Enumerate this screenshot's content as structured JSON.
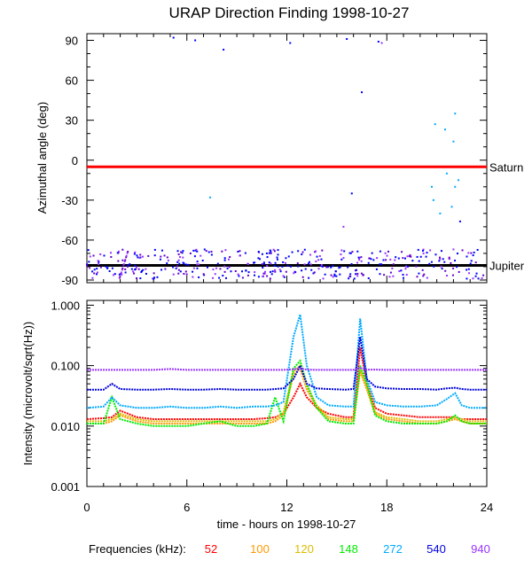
{
  "chart_data": [
    {
      "type": "scatter",
      "title": "URAP Direction Finding  1998-10-27",
      "xlabel": "",
      "ylabel": "Azimuthal angle (deg)",
      "xlim": [
        0,
        24
      ],
      "ylim": [
        -92,
        95
      ],
      "xticks": [
        0,
        6,
        12,
        18,
        24
      ],
      "yticks": [
        "90",
        "60",
        "30",
        "0",
        "-30",
        "-60",
        "-90"
      ],
      "ytick_values": [
        90,
        60,
        30,
        0,
        -30,
        -60,
        -90
      ],
      "grid": false,
      "reference_lines": [
        {
          "label": "Saturn",
          "y": -5,
          "color": "#ff0000"
        },
        {
          "label": "Jupiter",
          "y": -79,
          "color": "#000000"
        }
      ],
      "series": [
        {
          "frequency": "540",
          "color": "#0000ff",
          "points": [
            [
              5.2,
              92
            ],
            [
              6.5,
              90
            ],
            [
              8.2,
              83
            ],
            [
              12.2,
              88
            ],
            [
              15.6,
              91
            ],
            [
              17.5,
              89
            ],
            [
              16.5,
              51
            ],
            [
              15.9,
              -25
            ],
            [
              22.4,
              -46
            ],
            [
              17.8,
              -75
            ]
          ]
        },
        {
          "frequency": "940",
          "color": "#9933ff",
          "points": [
            [
              17.7,
              88
            ],
            [
              15.4,
              -50
            ],
            [
              20.2,
              -70
            ],
            [
              22.0,
              -67
            ]
          ]
        },
        {
          "frequency": "272",
          "color": "#00aaff",
          "points": [
            [
              20.9,
              27
            ],
            [
              21.5,
              23
            ],
            [
              22.1,
              35
            ],
            [
              22.0,
              14
            ],
            [
              7.4,
              -28
            ],
            [
              20.8,
              -30
            ],
            [
              21.2,
              -40
            ],
            [
              21.6,
              -10
            ],
            [
              22.1,
              -20
            ],
            [
              22.3,
              -15
            ],
            [
              21.9,
              -35
            ],
            [
              20.7,
              -20
            ]
          ]
        }
      ]
    },
    {
      "type": "line",
      "xlabel": "time - hours on 1998-10-27",
      "ylabel": "Intensity (microvolt/sqrt(Hz))",
      "xlim": [
        0,
        24
      ],
      "ylim": [
        0.001,
        1.2
      ],
      "yscale": "log",
      "xticks": [
        "0",
        "6",
        "12",
        "18",
        "24"
      ],
      "xtick_values": [
        0,
        6,
        12,
        18,
        24
      ],
      "yticks": [
        "1.000",
        "0.100",
        "0.010",
        "0.001"
      ],
      "ytick_values": [
        1.0,
        0.1,
        0.01,
        0.001
      ],
      "grid": false,
      "x": [
        0,
        1,
        1.5,
        2,
        3,
        4,
        5,
        6,
        7,
        8,
        9,
        10,
        10.8,
        11.3,
        11.8,
        12.4,
        12.8,
        13.2,
        13.8,
        14.5,
        15.5,
        16.0,
        16.4,
        16.8,
        17.3,
        18.0,
        19.0,
        20.0,
        21.0,
        21.6,
        22.1,
        22.5,
        23.0,
        24.0
      ],
      "series": [
        {
          "name": "52",
          "color": "#ff0000",
          "values": [
            0.013,
            0.0135,
            0.014,
            0.018,
            0.014,
            0.013,
            0.013,
            0.013,
            0.013,
            0.013,
            0.013,
            0.013,
            0.0135,
            0.014,
            0.016,
            0.03,
            0.05,
            0.03,
            0.02,
            0.016,
            0.014,
            0.014,
            0.2,
            0.05,
            0.02,
            0.016,
            0.015,
            0.014,
            0.014,
            0.014,
            0.014,
            0.013,
            0.013,
            0.013
          ]
        },
        {
          "name": "100",
          "color": "#ff9900",
          "values": [
            0.011,
            0.011,
            0.012,
            0.015,
            0.012,
            0.011,
            0.011,
            0.011,
            0.011,
            0.011,
            0.011,
            0.011,
            0.011,
            0.012,
            0.015,
            0.07,
            0.09,
            0.04,
            0.02,
            0.013,
            0.012,
            0.012,
            0.08,
            0.04,
            0.016,
            0.013,
            0.012,
            0.011,
            0.011,
            0.012,
            0.013,
            0.012,
            0.011,
            0.011
          ]
        },
        {
          "name": "120",
          "color": "#ddbb00",
          "values": [
            0.012,
            0.012,
            0.013,
            0.016,
            0.013,
            0.012,
            0.012,
            0.012,
            0.012,
            0.012,
            0.012,
            0.012,
            0.012,
            0.013,
            0.017,
            0.08,
            0.1,
            0.045,
            0.022,
            0.014,
            0.013,
            0.013,
            0.09,
            0.045,
            0.017,
            0.014,
            0.013,
            0.012,
            0.012,
            0.013,
            0.014,
            0.013,
            0.012,
            0.012
          ]
        },
        {
          "name": "148",
          "color": "#00ee00",
          "values": [
            0.011,
            0.011,
            0.03,
            0.013,
            0.011,
            0.01,
            0.01,
            0.01,
            0.011,
            0.012,
            0.01,
            0.01,
            0.011,
            0.03,
            0.012,
            0.09,
            0.12,
            0.05,
            0.02,
            0.012,
            0.011,
            0.011,
            0.1,
            0.05,
            0.015,
            0.012,
            0.011,
            0.011,
            0.011,
            0.012,
            0.015,
            0.012,
            0.011,
            0.011
          ]
        },
        {
          "name": "272",
          "color": "#00aaff",
          "values": [
            0.02,
            0.021,
            0.03,
            0.022,
            0.02,
            0.02,
            0.021,
            0.02,
            0.02,
            0.021,
            0.02,
            0.021,
            0.021,
            0.022,
            0.025,
            0.3,
            0.7,
            0.1,
            0.03,
            0.022,
            0.021,
            0.021,
            0.6,
            0.06,
            0.025,
            0.022,
            0.021,
            0.021,
            0.022,
            0.028,
            0.035,
            0.022,
            0.02,
            0.02
          ]
        },
        {
          "name": "540",
          "color": "#0000dd",
          "values": [
            0.04,
            0.04,
            0.05,
            0.041,
            0.04,
            0.04,
            0.041,
            0.04,
            0.04,
            0.041,
            0.04,
            0.04,
            0.04,
            0.041,
            0.042,
            0.06,
            0.1,
            0.05,
            0.042,
            0.041,
            0.04,
            0.041,
            0.3,
            0.06,
            0.045,
            0.042,
            0.041,
            0.041,
            0.04,
            0.042,
            0.043,
            0.041,
            0.04,
            0.04
          ]
        },
        {
          "name": "940",
          "color": "#9933ff",
          "values": [
            0.085,
            0.085,
            0.085,
            0.085,
            0.085,
            0.085,
            0.088,
            0.085,
            0.085,
            0.085,
            0.085,
            0.085,
            0.085,
            0.085,
            0.085,
            0.087,
            0.09,
            0.086,
            0.085,
            0.085,
            0.085,
            0.085,
            0.092,
            0.086,
            0.086,
            0.085,
            0.085,
            0.085,
            0.085,
            0.085,
            0.085,
            0.085,
            0.085,
            0.085
          ]
        }
      ]
    }
  ],
  "legend": {
    "label": "Frequencies (kHz):",
    "items": [
      {
        "text": "52",
        "color": "#ff0000"
      },
      {
        "text": "100",
        "color": "#ff9900"
      },
      {
        "text": "120",
        "color": "#ddbb00"
      },
      {
        "text": "148",
        "color": "#00ee00"
      },
      {
        "text": "272",
        "color": "#00aaff"
      },
      {
        "text": "540",
        "color": "#0000dd"
      },
      {
        "text": "940",
        "color": "#9933ff"
      }
    ]
  }
}
